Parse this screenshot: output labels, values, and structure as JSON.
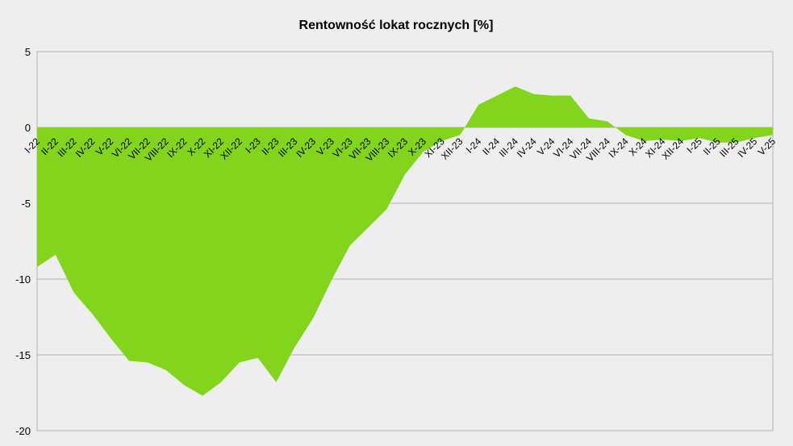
{
  "chart_data": {
    "type": "area",
    "title": "Rentowność lokat rocznych [%]",
    "xlabel": "",
    "ylabel": "",
    "ylim": [
      -20,
      5
    ],
    "yticks": [
      5,
      0,
      -5,
      -10,
      -15,
      -20
    ],
    "grid": true,
    "legend": "none",
    "colors": {
      "fill": "#82d41c",
      "plot_bg": "#eeeeee",
      "grid": "#b3b3b3"
    },
    "categories": [
      "I-22",
      "II-22",
      "III-22",
      "IV-22",
      "V-22",
      "VI-22",
      "VII-22",
      "VIII-22",
      "IX-22",
      "X-22",
      "XI-22",
      "XII-22",
      "I-23",
      "II-23",
      "III-23",
      "IV-23",
      "V-23",
      "VI-23",
      "VII-23",
      "VIII-23",
      "IX-23",
      "X-23",
      "XI-23",
      "XII-23",
      "I-24",
      "II-24",
      "III-24",
      "IV-24",
      "V-24",
      "VI-24",
      "VII-24",
      "VIII-24",
      "IX-24",
      "X-24",
      "XI-24",
      "XII-24",
      "I-25",
      "II-25",
      "III-25",
      "IV-25",
      "V-25"
    ],
    "series": [
      {
        "values": [
          -9.2,
          -8.4,
          -10.9,
          -12.3,
          -13.9,
          -15.4,
          -15.5,
          -16.0,
          -17.0,
          -17.7,
          -16.8,
          -15.5,
          -15.2,
          -16.8,
          -14.5,
          -12.6,
          -10.1,
          -7.8,
          -6.6,
          -5.4,
          -3.1,
          -1.6,
          -0.9,
          -0.5,
          1.5,
          2.1,
          2.7,
          2.2,
          2.1,
          2.1,
          0.6,
          0.4,
          -0.5,
          -0.9,
          -0.8,
          -0.9,
          -0.7,
          -1.0,
          -1.0,
          -0.7,
          -0.5
        ]
      }
    ]
  }
}
